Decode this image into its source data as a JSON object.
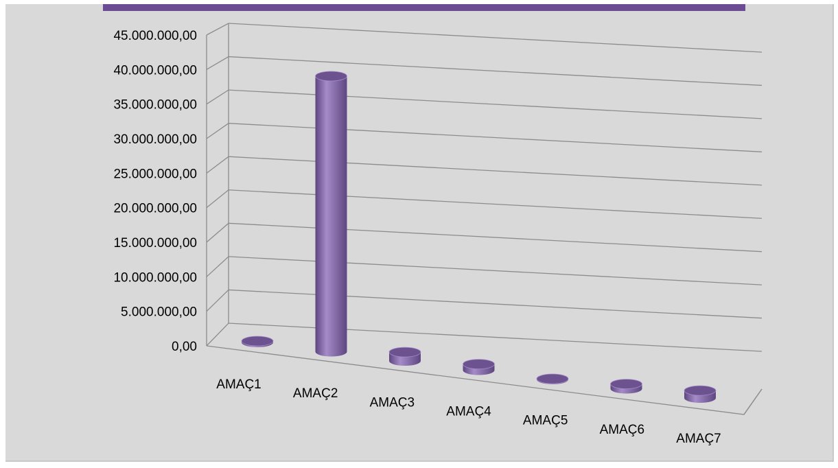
{
  "chart_data": {
    "type": "bar",
    "style": "3d-cylinder",
    "title": "",
    "xlabel": "",
    "ylabel": "",
    "categories": [
      "AMAÇ1",
      "AMAÇ2",
      "AMAÇ3",
      "AMAÇ4",
      "AMAÇ5",
      "AMAÇ6",
      "AMAÇ7"
    ],
    "values": [
      200000,
      40700000,
      1300000,
      900000,
      100000,
      700000,
      1100000
    ],
    "ylim": [
      0,
      45000000
    ],
    "yticks": [
      "0,00",
      "5.000.000,00",
      "10.000.000,00",
      "15.000.000,00",
      "20.000.000,00",
      "25.000.000,00",
      "30.000.000,00",
      "35.000.000,00",
      "40.000.000,00",
      "45.000.000,00"
    ],
    "grid": true,
    "legend": "none",
    "colors": {
      "bar": "#8064a2",
      "bar_light": "#a58cc9",
      "bar_dark": "#5d4680",
      "bar_top": "#6c5390",
      "background": "#d9d9d9",
      "accent_bar": "#6b4c93",
      "grid": "#8c8c8c"
    }
  }
}
